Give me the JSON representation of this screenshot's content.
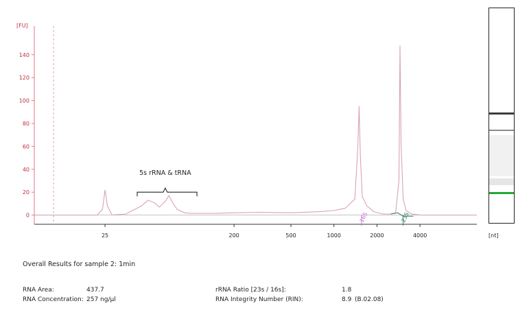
{
  "chart_data": {
    "type": "line",
    "ylabel": "[FU]",
    "xlabel": "[nt]",
    "x_scale": "log",
    "xlim": [
      8,
      10000
    ],
    "ylim": [
      -8,
      165
    ],
    "yticks": [
      0,
      20,
      40,
      60,
      80,
      100,
      120,
      140
    ],
    "xticks": [
      25,
      200,
      500,
      1000,
      2000,
      4000
    ],
    "grid": false,
    "annotations": {
      "small_rna_label": "5s rRNA & tRNA",
      "peak_16s": "16S",
      "peak_23s": "23S"
    },
    "series": [
      {
        "color": "#d9a2b8",
        "x": [
          8,
          22,
          24,
          25,
          26,
          28,
          35,
          45,
          50,
          55,
          60,
          66,
          70,
          75,
          80,
          90,
          100,
          150,
          200,
          300,
          500,
          800,
          1000,
          1200,
          1400,
          1470,
          1500,
          1530,
          1580,
          1700,
          1900,
          2200,
          2500,
          2700,
          2850,
          2900,
          2950,
          3050,
          3200,
          3500,
          4000,
          6000,
          10000
        ],
        "y": [
          0,
          0,
          5,
          22,
          8,
          0,
          1,
          8,
          13,
          11,
          7,
          12,
          17,
          10,
          5,
          2,
          1.5,
          1.5,
          2,
          2.5,
          2,
          3,
          4,
          6,
          14,
          60,
          95,
          52,
          16,
          8,
          3,
          1,
          1,
          2,
          30,
          148,
          62,
          14,
          4,
          1,
          0,
          0,
          0
        ]
      }
    ],
    "gel_bands_colors": [
      "#3c3c3c",
      "#8c8c8c",
      "#22aa33"
    ]
  },
  "colors": {
    "axis": "#e07a8a",
    "trace": "#d9a2b8",
    "marker_16s": "#c66fd0",
    "marker_23s": "#2f7a5a",
    "gel_green": "#22aa33"
  },
  "results": {
    "title": "Overall Results for sample 2:  1min",
    "rna_area_label": "RNA Area:",
    "rna_area_value": "437.7",
    "rna_conc_label": "RNA Concentration:",
    "rna_conc_value": "257 ng/µl",
    "rrna_ratio_label": "rRNA Ratio [23s / 16s]:",
    "rrna_ratio_value": "1.8",
    "rin_label": "RNA Integrity Number (RIN):",
    "rin_value": "8.9",
    "rin_version": "(B.02.08)"
  }
}
